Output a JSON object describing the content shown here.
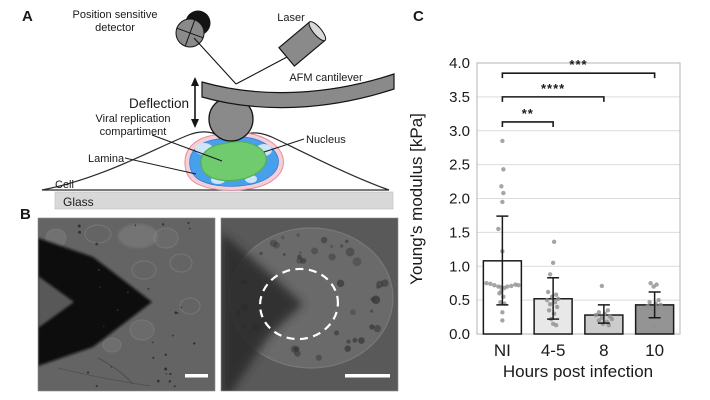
{
  "figure": {
    "background": "#ffffff"
  },
  "panel_a": {
    "label": "A",
    "labels": {
      "detector_line1": "Position sensitive",
      "detector_line2": "detector",
      "laser": "Laser",
      "cantilever": "AFM cantilever",
      "deflection": "Deflection",
      "vrc_line1": "Viral replication",
      "vrc_line2": "compartiment",
      "lamina": "Lamina",
      "nucleus": "Nucleus",
      "cell": "Cell",
      "glass": "Glass"
    },
    "colors": {
      "instrument_gray": "#8a8a8a",
      "detector_black": "#141414",
      "glass_gray": "#d8d8d8",
      "nucleus_blue": "#48a0ec",
      "nucleus_light_blue": "#cfe4f8",
      "vrc_green": "#6fcb6d",
      "lamina_pink": "#f7ced6"
    }
  },
  "panel_b": {
    "label": "B",
    "left_image": {
      "content": "AFM cantilever tip over adherent cells (brightfield)",
      "has_scale_bar": true
    },
    "right_image": {
      "content": "Close-up of infected cell with dashed outline of probed nuclear region",
      "has_scale_bar": true
    }
  },
  "panel_c": {
    "label": "C"
  },
  "chart_data": {
    "type": "bar",
    "categories": [
      "NI",
      "4-5",
      "8",
      "10"
    ],
    "values": [
      1.08,
      0.52,
      0.28,
      0.43
    ],
    "error_low": [
      0.43,
      0.22,
      0.16,
      0.24
    ],
    "error_high": [
      1.74,
      0.83,
      0.43,
      0.62
    ],
    "bar_colors": [
      "#ffffff",
      "#e8e8e8",
      "#cccccc",
      "#949494"
    ],
    "scatter": [
      [
        [
          2.85,
          0
        ],
        [
          2.43,
          1
        ],
        [
          2.18,
          -1
        ],
        [
          2.08,
          1
        ],
        [
          1.95,
          0
        ],
        [
          1.55,
          -4
        ],
        [
          1.22,
          0
        ],
        [
          0.75,
          -16
        ],
        [
          0.74,
          -12
        ],
        [
          0.73,
          13
        ],
        [
          0.72,
          -8
        ],
        [
          0.72,
          16
        ],
        [
          0.71,
          9
        ],
        [
          0.7,
          -4
        ],
        [
          0.7,
          5
        ],
        [
          0.69,
          -1
        ],
        [
          0.68,
          2
        ],
        [
          0.63,
          -1
        ],
        [
          0.6,
          -3
        ],
        [
          0.55,
          1
        ],
        [
          0.47,
          -2
        ],
        [
          0.45,
          2
        ],
        [
          0.32,
          0
        ],
        [
          0.2,
          0
        ]
      ],
      [
        [
          1.36,
          1
        ],
        [
          1.05,
          0
        ],
        [
          0.88,
          -3
        ],
        [
          0.62,
          -5
        ],
        [
          0.58,
          3
        ],
        [
          0.55,
          -1
        ],
        [
          0.52,
          5
        ],
        [
          0.5,
          -6
        ],
        [
          0.47,
          2
        ],
        [
          0.44,
          -3
        ],
        [
          0.4,
          4
        ],
        [
          0.35,
          -4
        ],
        [
          0.3,
          1
        ],
        [
          0.22,
          -2
        ],
        [
          0.15,
          0
        ],
        [
          0.13,
          3
        ]
      ],
      [
        [
          0.71,
          -2
        ],
        [
          0.35,
          4
        ],
        [
          0.32,
          -5
        ],
        [
          0.3,
          1
        ],
        [
          0.28,
          -8
        ],
        [
          0.26,
          6
        ],
        [
          0.24,
          -2
        ],
        [
          0.22,
          8
        ],
        [
          0.2,
          -5
        ],
        [
          0.18,
          3
        ],
        [
          0.15,
          -1
        ],
        [
          0.13,
          5
        ]
      ],
      [
        [
          0.75,
          -4
        ],
        [
          0.73,
          2
        ],
        [
          0.7,
          -1
        ],
        [
          0.5,
          4
        ],
        [
          0.47,
          -5
        ],
        [
          0.45,
          1
        ],
        [
          0.43,
          6
        ],
        [
          0.41,
          -7
        ],
        [
          0.39,
          3
        ],
        [
          0.37,
          -3
        ],
        [
          0.34,
          0
        ],
        [
          0.12,
          0
        ]
      ]
    ],
    "significance": [
      {
        "from": 0,
        "to": 1,
        "height": 3.13,
        "stars": "**"
      },
      {
        "from": 0,
        "to": 2,
        "height": 3.5,
        "stars": "****"
      },
      {
        "from": 0,
        "to": 3,
        "height": 3.85,
        "stars": "***"
      }
    ],
    "xlabel": "Hours post infection",
    "ylabel": "Young's modulus [kPa]",
    "ylim": [
      0,
      4.0
    ],
    "yticks": [
      "0.0",
      "0.5",
      "1.0",
      "1.5",
      "2.0",
      "2.5",
      "3.0",
      "3.5",
      "4.0"
    ],
    "grid": true,
    "legend": null,
    "colors": {
      "grid": "#dcdcdc",
      "border": "#c0c0c0",
      "scatter": "#8f8f8f",
      "error": "#1a1a1a"
    }
  }
}
